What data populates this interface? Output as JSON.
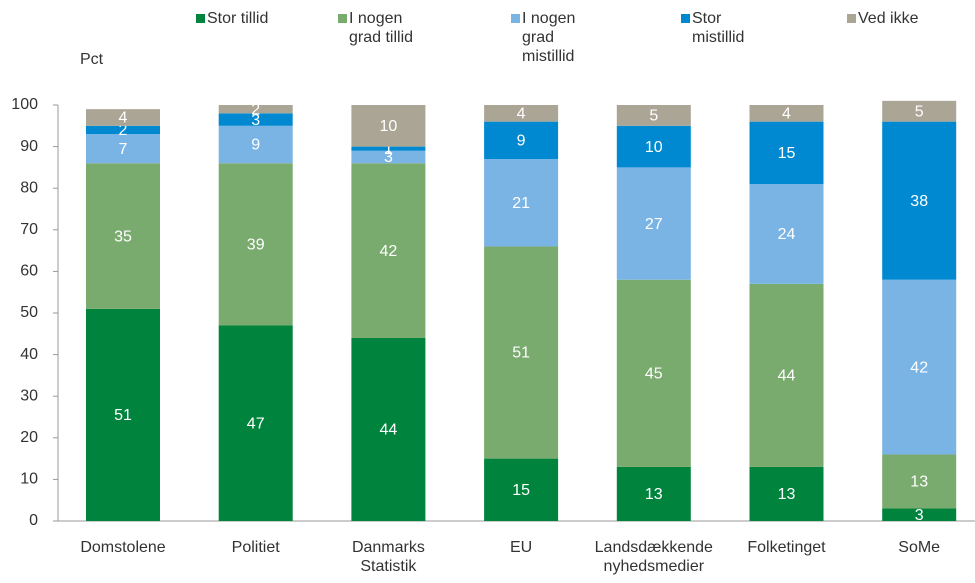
{
  "chart_data": {
    "type": "stacked_bar",
    "y_label": "Pct",
    "categories": [
      "Domstolene",
      "Politiet",
      "Danmarks Statistik",
      "EU",
      "Landsdækkende nyhedsmedier",
      "Folketinget",
      "SoMe"
    ],
    "series": [
      {
        "name": "Stor tillid",
        "color": "#00843d",
        "values": [
          51,
          47,
          44,
          15,
          13,
          13,
          3
        ]
      },
      {
        "name": "I nogen grad tillid",
        "color": "#79aa6e",
        "values": [
          35,
          39,
          42,
          51,
          45,
          44,
          13
        ]
      },
      {
        "name": "I nogen grad mistillid",
        "color": "#7ab4e4",
        "values": [
          7,
          9,
          3,
          21,
          27,
          24,
          42
        ]
      },
      {
        "name": "Stor mistillid",
        "color": "#0089d0",
        "values": [
          2,
          3,
          1,
          9,
          10,
          15,
          38
        ]
      },
      {
        "name": "Ved ikke",
        "color": "#aba596",
        "values": [
          4,
          2,
          10,
          4,
          5,
          4,
          5
        ]
      }
    ],
    "ylim": [
      0,
      100
    ],
    "yticks": [
      0,
      10,
      20,
      30,
      40,
      50,
      60,
      70,
      80,
      90,
      100
    ],
    "legend": "top"
  }
}
